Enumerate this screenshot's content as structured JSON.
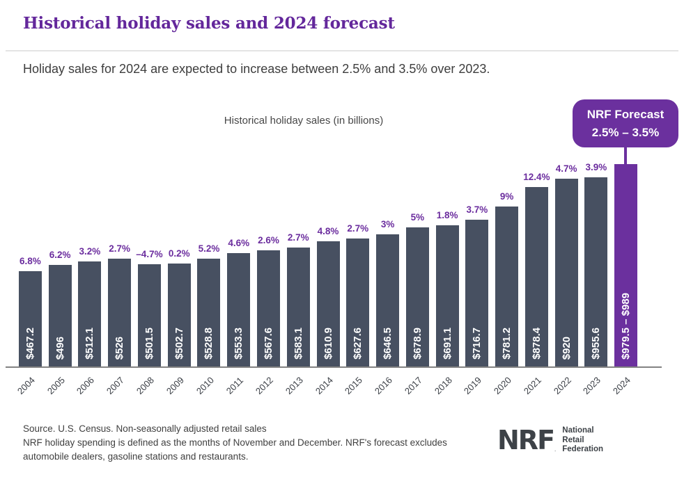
{
  "page": {
    "title": "Historical holiday sales and 2024 forecast",
    "subtitle": "Holiday sales for 2024 are expected to increase between 2.5% and 3.5% over 2023."
  },
  "chart_data": {
    "type": "bar",
    "title": "Historical holiday sales (in billions)",
    "categories": [
      "2004",
      "2005",
      "2006",
      "2007",
      "2008",
      "2009",
      "2010",
      "2011",
      "2012",
      "2013",
      "2014",
      "2015",
      "2016",
      "2017",
      "2018",
      "2019",
      "2020",
      "2021",
      "2022",
      "2023",
      "2024"
    ],
    "series": [
      {
        "name": "Holiday sales (billions USD)",
        "values": [
          467.2,
          496,
          512.1,
          526,
          501.5,
          502.7,
          528.8,
          553.3,
          567.6,
          583.1,
          610.9,
          627.6,
          646.5,
          678.9,
          691.1,
          716.7,
          781.2,
          878.4,
          920,
          955.6,
          989
        ]
      }
    ],
    "bar_value_labels": [
      "$467.2",
      "$496",
      "$512.1",
      "$526",
      "$501.5",
      "$502.7",
      "$528.8",
      "$553.3",
      "$567.6",
      "$583.1",
      "$610.9",
      "$627.6",
      "$646.5",
      "$678.9",
      "$691.1",
      "$716.7",
      "$781.2",
      "$878.4",
      "$920",
      "$955.6",
      "$979.5 – $989"
    ],
    "pct_change_labels": [
      "6.8%",
      "6.2%",
      "3.2%",
      "2.7%",
      "–4.7%",
      "0.2%",
      "5.2%",
      "4.6%",
      "2.6%",
      "2.7%",
      "4.8%",
      "2.7%",
      "3%",
      "5%",
      "1.8%",
      "3.7%",
      "9%",
      "12.4%",
      "4.7%",
      "3.9%",
      ""
    ],
    "forecast_index": 20,
    "forecast_range_billions": [
      979.5,
      989
    ],
    "ylim": [
      0,
      1000
    ],
    "grid": false,
    "legend": "none",
    "colors": {
      "bar": "#475061",
      "forecast_bar": "#6b309e",
      "pct_label": "#6b2d9e",
      "title_purple": "#63279b"
    }
  },
  "callout": {
    "line1": "NRF Forecast",
    "line2": "2.5% – 3.5%"
  },
  "footer": {
    "source_line1": "Source. U.S. Census. Non-seasonally adjusted retail sales",
    "source_line2": "NRF holiday spending is defined as the months of November and December. NRF's forecast excludes automobile dealers, gasoline stations and restaurants.",
    "logo": {
      "acronym": "NRF",
      "reg_mark": ".",
      "text_lines": [
        "National",
        "Retail",
        "Federation"
      ]
    }
  }
}
